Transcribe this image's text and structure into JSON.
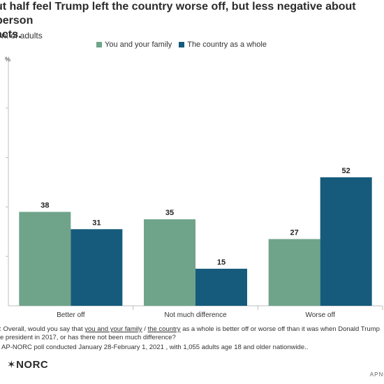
{
  "chart_data": {
    "type": "bar",
    "title": "ut half feel Trump left the country worse off, but less negative about person\nacts.",
    "subtitle": "nt of adults",
    "categories": [
      "Better off",
      "Not much difference",
      "Worse off"
    ],
    "series": [
      {
        "name": "You and your family",
        "values": [
          38,
          35,
          27
        ],
        "color": "#6fa48a"
      },
      {
        "name": "The country as a whole",
        "values": [
          31,
          15,
          52
        ],
        "color": "#165b7c"
      }
    ],
    "ylim": [
      0,
      100
    ],
    "yticks": [
      "",
      "",
      "",
      "",
      "%"
    ],
    "grid": false,
    "legend": "top"
  },
  "notes": {
    "question_prefix": "n: Overall, would you say that ",
    "question_u1": "you and your family",
    "question_mid": " / ",
    "question_u2": "the country",
    "question_rest": " as a whole is better off or worse off than it was when Donald Trump",
    "question_line2": "e president in 2017, or has there not been much difference?",
    "source": "AP-NORC poll conducted January 28-February 1, 2021 , with 1,055 adults age 18 and older nationwide.."
  },
  "branding": {
    "logo_text": "NORC",
    "logo_symbol": "✶",
    "agency": "APNC"
  }
}
